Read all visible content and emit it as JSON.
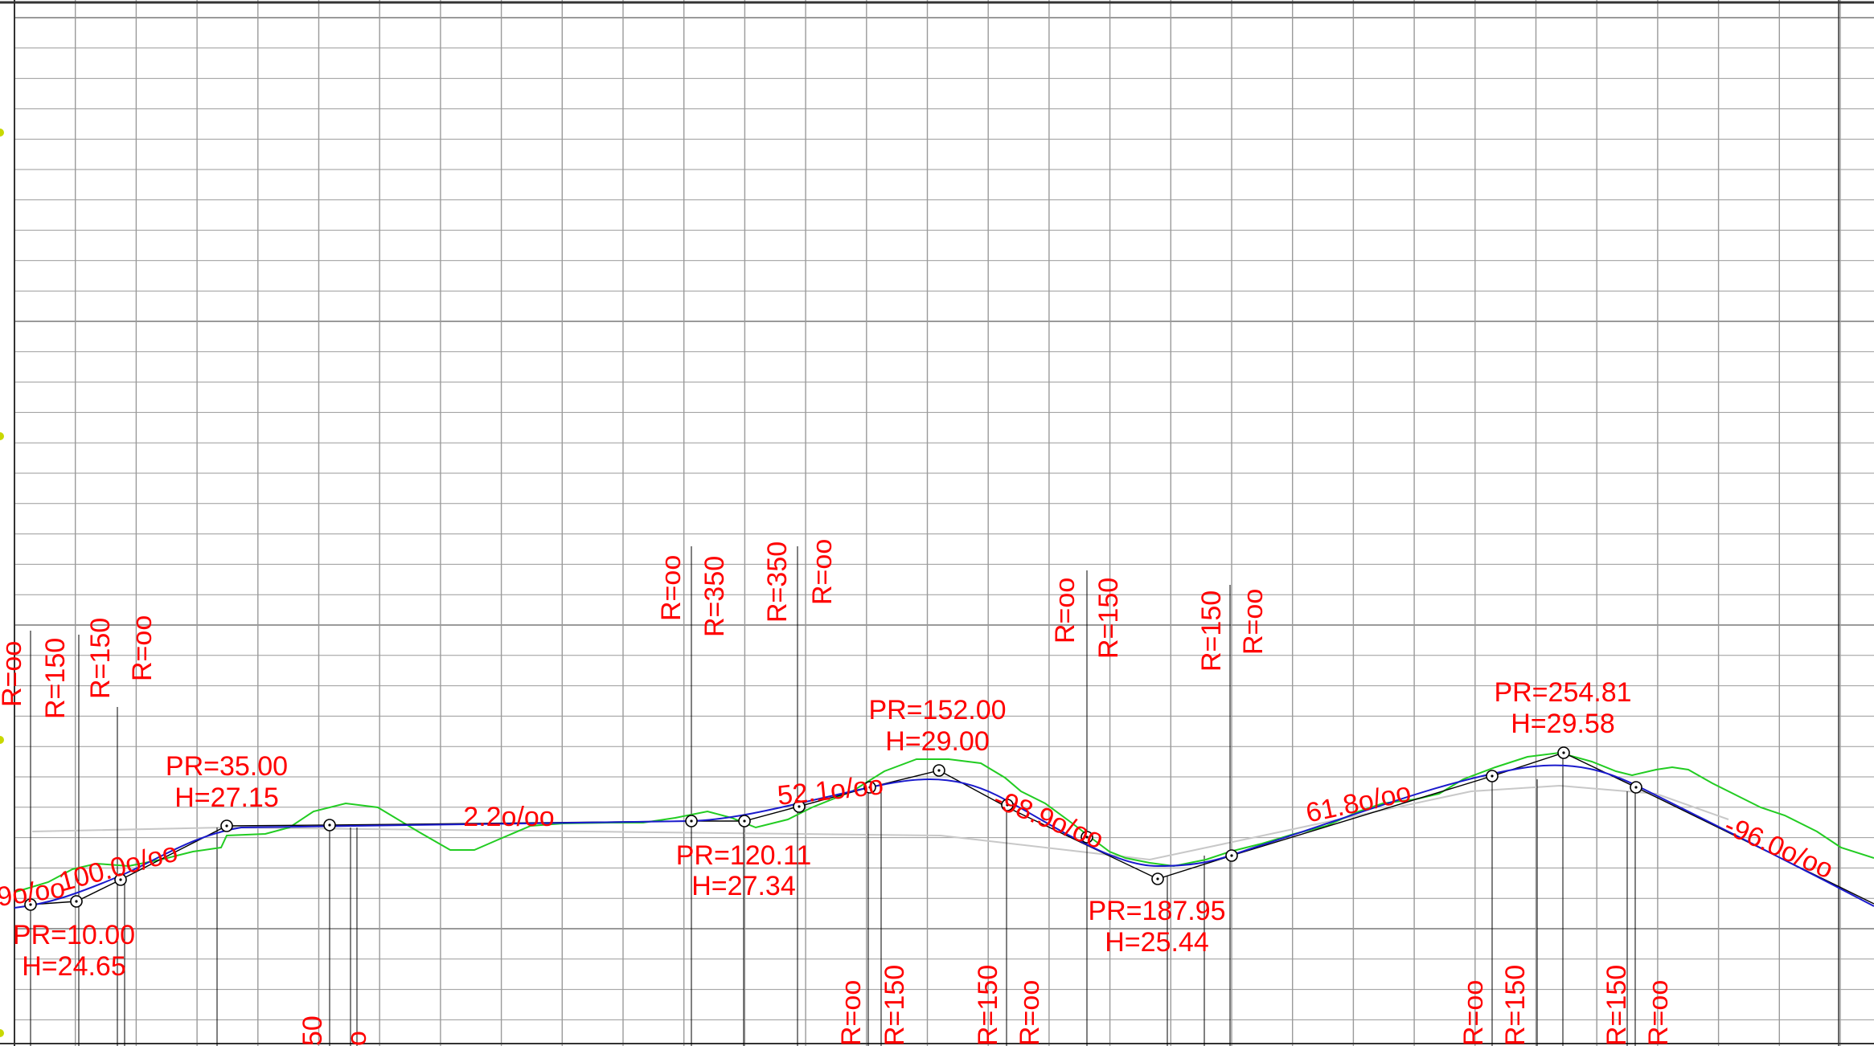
{
  "colors": {
    "background": "#ffffff",
    "grid": "#9a9a9a",
    "annotation": "#ff0000",
    "terrain": "#22cc22",
    "design_curve": "#1a1acc",
    "tangent": "#000000",
    "reference": "#c8c8c8",
    "border_mark": "#c8d800"
  },
  "annotations": {
    "radius_labels": [
      "R=oo",
      "R=150",
      "R=150",
      "R=oo",
      "R=oo",
      "R=350",
      "R=350",
      "R=oo",
      "R=oo",
      "R=150",
      "R=150",
      "R=oo",
      "R=oo",
      "R=150",
      "R=150",
      "R=oo",
      "R=oo",
      "R=150",
      "R=150",
      "R=oo",
      "50",
      "o"
    ],
    "grade_labels": [
      "9o/oo",
      "100.0o/oo",
      "2.2o/oo",
      "52.1o/oo",
      "-98.9o/oo",
      "61.8o/oo",
      "-96.0o/oo"
    ],
    "vertices": [
      {
        "pr": "PR=10.00",
        "h": "H=24.65"
      },
      {
        "pr": "PR=35.00",
        "h": "H=27.15"
      },
      {
        "pr": "PR=120.11",
        "h": "H=27.34"
      },
      {
        "pr": "PR=152.00",
        "h": "H=29.00"
      },
      {
        "pr": "PR=187.95",
        "h": "H=25.44"
      },
      {
        "pr": "PR=254.81",
        "h": "H=29.58"
      }
    ]
  }
}
